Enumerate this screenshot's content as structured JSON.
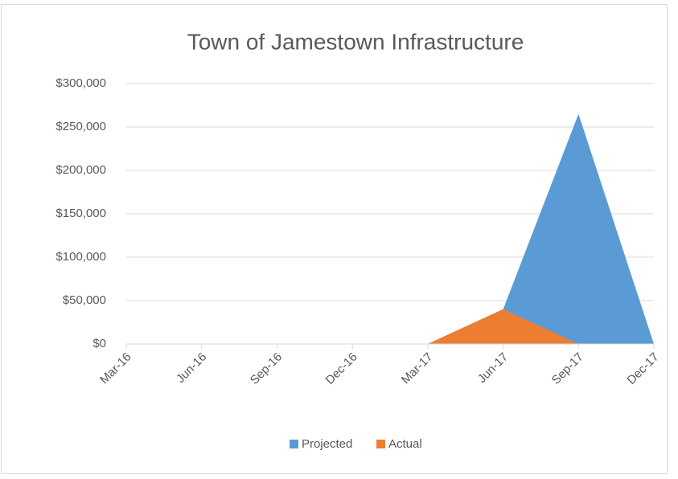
{
  "chart_data": {
    "type": "area",
    "title": "Town of Jamestown Infrastructure",
    "categories": [
      "Mar-16",
      "Jun-16",
      "Sep-16",
      "Dec-16",
      "Mar-17",
      "Jun-17",
      "Sep-17",
      "Dec-17"
    ],
    "series": [
      {
        "name": "Projected",
        "color": "#5b9bd5",
        "values": [
          0,
          0,
          0,
          0,
          0,
          40000,
          265000,
          0
        ]
      },
      {
        "name": "Actual",
        "color": "#ed7d31",
        "values": [
          0,
          0,
          0,
          0,
          0,
          40000,
          0,
          0
        ]
      }
    ],
    "ylim": [
      0,
      300000
    ],
    "yticks": [
      {
        "value": 0,
        "label": "$0"
      },
      {
        "value": 50000,
        "label": "$50,000"
      },
      {
        "value": 100000,
        "label": "$100,000"
      },
      {
        "value": 150000,
        "label": "$150,000"
      },
      {
        "value": 200000,
        "label": "$200,000"
      },
      {
        "value": 250000,
        "label": "$250,000"
      },
      {
        "value": 300000,
        "label": "$300,000"
      }
    ],
    "grid": true,
    "legend": "bottom"
  }
}
